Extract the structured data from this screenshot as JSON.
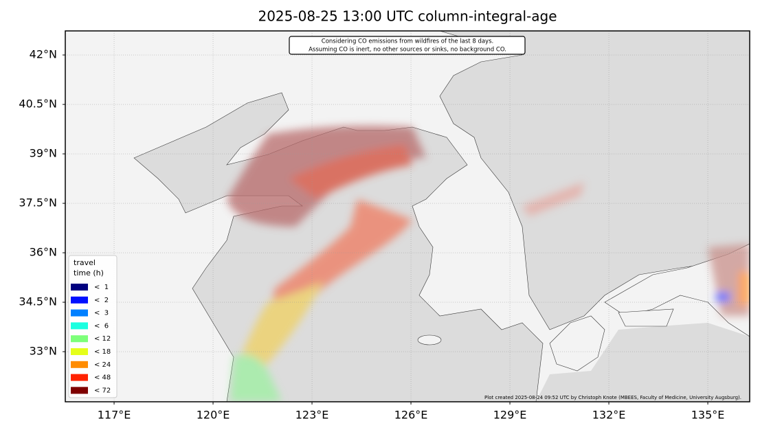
{
  "map": {
    "title": "2025-08-25 13:00 UTC column-integral-age",
    "annotation": [
      "Considering CO emissions from wildfires of the last 8 days.",
      "Assuming CO is inert, no other sources or sinks, no background CO."
    ],
    "credit": "Plot created 2025-08-24 09:52 UTC by Christoph Knote (MBEES, Faculty of Medicine, University Augsburg).",
    "xlim": [
      115.52,
      136.27
    ],
    "ylim": [
      31.48,
      42.73
    ],
    "xticks": [
      {
        "value": 117,
        "label": "117°E"
      },
      {
        "value": 120,
        "label": "120°E"
      },
      {
        "value": 123,
        "label": "123°E"
      },
      {
        "value": 126,
        "label": "126°E"
      },
      {
        "value": 129,
        "label": "129°E"
      },
      {
        "value": 132,
        "label": "132°E"
      },
      {
        "value": 135,
        "label": "135°E"
      }
    ],
    "yticks": [
      {
        "value": 42,
        "label": "42°N"
      },
      {
        "value": 40.5,
        "label": "40.5°N"
      },
      {
        "value": 39,
        "label": "39°N"
      },
      {
        "value": 37.5,
        "label": "37.5°N"
      },
      {
        "value": 36,
        "label": "36°N"
      },
      {
        "value": 34.5,
        "label": "34.5°N"
      },
      {
        "value": 33,
        "label": "33°N"
      }
    ],
    "grid": true,
    "legend": {
      "title": [
        "travel",
        "time (h)"
      ],
      "items": [
        {
          "label": "<  1",
          "color": "#00007f"
        },
        {
          "label": "<  2",
          "color": "#0010ff"
        },
        {
          "label": "<  3",
          "color": "#0080ff"
        },
        {
          "label": "<  6",
          "color": "#1affe0"
        },
        {
          "label": "< 12",
          "color": "#7dff7a"
        },
        {
          "label": "< 18",
          "color": "#e5ff1a"
        },
        {
          "label": "< 24",
          "color": "#ff8c00"
        },
        {
          "label": "< 48",
          "color": "#ff2200"
        },
        {
          "label": "< 72",
          "color": "#7f0000"
        }
      ]
    }
  }
}
